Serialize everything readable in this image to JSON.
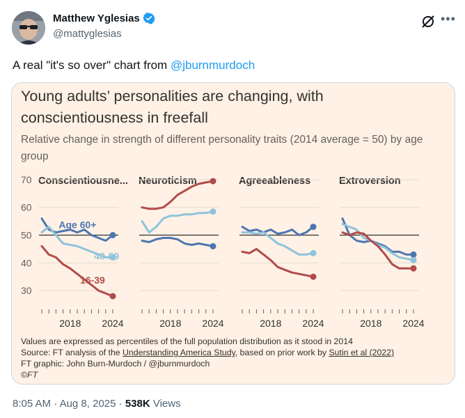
{
  "author": {
    "display_name": "Matthew Yglesias",
    "handle": "@mattyglesias",
    "verified": true,
    "verified_color": "#1d9bf0"
  },
  "tweet": {
    "text_prefix": "A real \"it's so over\" chart from ",
    "mention": "@jburnmurdoch"
  },
  "meta": {
    "time": "8:05 AM",
    "separator": "·",
    "date": "Aug 8, 2025",
    "views_count": "538K",
    "views_label": "Views"
  },
  "icons": {
    "grok": "grok-icon",
    "more": "more-icon"
  },
  "chart_card": {
    "title": "Young adults’ personalities are changing, with conscientiousness in freefall",
    "subtitle": "Relative change in strength of different personality traits (2014 average = 50) by age group",
    "footer": {
      "line1": "Values are expressed as percentiles of the full population distribution as it stood in 2014",
      "line2_a": "Source: FT analysis of the ",
      "line2_link1": "Understanding America Study",
      "line2_b": ", based on prior work by ",
      "line2_link2": "Sutin et al (2022)",
      "line3": "FT graphic: John Burn-Murdoch / @jburnmurdoch",
      "line4": "©FT"
    }
  },
  "chart_data": {
    "type": "line",
    "x_tick_labels": [
      "2018",
      "2024"
    ],
    "x_range": [
      2014,
      2024
    ],
    "ylim": [
      25,
      72
    ],
    "y_ticks": [
      30,
      40,
      50,
      60,
      70
    ],
    "reference_line": 50,
    "colors": {
      "Age 60+": "#4d76b0",
      "40-59": "#8ec3dc",
      "16-39": "#b24a4a"
    },
    "panels": [
      {
        "title": "Conscientiousne...",
        "labels": [
          {
            "series": "Age 60+",
            "text": "Age 60+"
          },
          {
            "series": "40-59",
            "text": "40-59"
          },
          {
            "series": "16-39",
            "text": "16-39"
          }
        ],
        "series": [
          {
            "name": "Age 60+",
            "x": [
              2014,
              2015,
              2016,
              2017,
              2018,
              2019,
              2020,
              2021,
              2022,
              2023,
              2024
            ],
            "values": [
              56,
              52,
              51,
              51.5,
              52,
              51,
              52,
              50,
              49,
              48,
              50
            ]
          },
          {
            "name": "40-59",
            "x": [
              2014,
              2015,
              2016,
              2017,
              2018,
              2019,
              2020,
              2021,
              2022,
              2023,
              2024
            ],
            "values": [
              51,
              53,
              50,
              47,
              46.5,
              46,
              45,
              44,
              43,
              42,
              42
            ]
          },
          {
            "name": "16-39",
            "x": [
              2014,
              2015,
              2016,
              2017,
              2018,
              2019,
              2020,
              2021,
              2022,
              2023,
              2024
            ],
            "values": [
              46,
              43,
              42,
              39.5,
              38,
              36,
              34,
              32,
              30,
              29,
              28
            ]
          }
        ]
      },
      {
        "title": "Neuroticism",
        "labels": [],
        "series": [
          {
            "name": "16-39",
            "x": [
              2014,
              2015,
              2016,
              2017,
              2018,
              2019,
              2020,
              2021,
              2022,
              2023,
              2024
            ],
            "values": [
              60,
              59.5,
              59.5,
              60,
              62,
              64.5,
              66,
              67.5,
              68.5,
              69,
              69.5
            ]
          },
          {
            "name": "40-59",
            "x": [
              2014,
              2015,
              2016,
              2017,
              2018,
              2019,
              2020,
              2021,
              2022,
              2023,
              2024
            ],
            "values": [
              55,
              51,
              53,
              56,
              57,
              57,
              57.5,
              57.5,
              58,
              58,
              58.5
            ]
          },
          {
            "name": "Age 60+",
            "x": [
              2014,
              2015,
              2016,
              2017,
              2018,
              2019,
              2020,
              2021,
              2022,
              2023,
              2024
            ],
            "values": [
              48,
              47.5,
              48.5,
              49,
              49,
              48.5,
              47,
              46.5,
              47,
              46.5,
              46
            ]
          }
        ]
      },
      {
        "title": "Agreeableness",
        "labels": [],
        "series": [
          {
            "name": "Age 60+",
            "x": [
              2014,
              2015,
              2016,
              2017,
              2018,
              2019,
              2020,
              2021,
              2022,
              2023,
              2024
            ],
            "values": [
              53,
              51.5,
              52,
              51,
              52,
              50.5,
              51,
              52,
              50,
              51,
              53
            ]
          },
          {
            "name": "40-59",
            "x": [
              2014,
              2015,
              2016,
              2017,
              2018,
              2019,
              2020,
              2021,
              2022,
              2023,
              2024
            ],
            "values": [
              51,
              51,
              50.5,
              51,
              49,
              47,
              46,
              44.5,
              43,
              43,
              43.5
            ]
          },
          {
            "name": "16-39",
            "x": [
              2014,
              2015,
              2016,
              2017,
              2018,
              2019,
              2020,
              2021,
              2022,
              2023,
              2024
            ],
            "values": [
              44,
              43.5,
              45,
              43,
              41,
              38.5,
              37.5,
              36.5,
              36,
              35.5,
              35
            ]
          }
        ]
      },
      {
        "title": "Extroversion",
        "labels": [],
        "series": [
          {
            "name": "Age 60+",
            "x": [
              2014,
              2015,
              2016,
              2017,
              2018,
              2019,
              2020,
              2021,
              2022,
              2023,
              2024
            ],
            "values": [
              56,
              50,
              48,
              47.5,
              48,
              47,
              46,
              44,
              44,
              43,
              43
            ]
          },
          {
            "name": "40-59",
            "x": [
              2014,
              2015,
              2016,
              2017,
              2018,
              2019,
              2020,
              2021,
              2022,
              2023,
              2024
            ],
            "values": [
              54,
              53,
              52,
              49,
              48,
              46.5,
              45.5,
              43.5,
              42,
              41.5,
              41
            ]
          },
          {
            "name": "16-39",
            "x": [
              2014,
              2015,
              2016,
              2017,
              2018,
              2019,
              2020,
              2021,
              2022,
              2023,
              2024
            ],
            "values": [
              51,
              50,
              51,
              50.5,
              48,
              46,
              43,
              39.5,
              38,
              38,
              38
            ]
          }
        ]
      }
    ]
  }
}
